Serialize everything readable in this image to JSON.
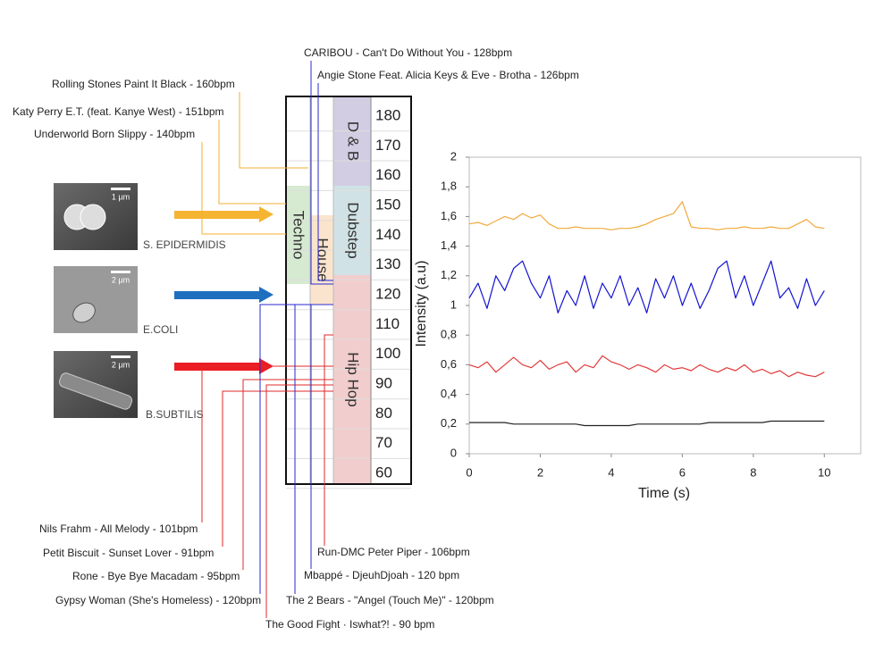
{
  "bpm_scale": [
    180,
    170,
    160,
    150,
    140,
    130,
    120,
    110,
    100,
    90,
    80,
    70,
    60
  ],
  "genres": [
    "D & B",
    "Dubstep",
    "Hip Hop",
    "Techno",
    "House"
  ],
  "bacteria": [
    {
      "name": "S. EPIDERMIDIS",
      "scale": "1 µm"
    },
    {
      "name": "E.COLI",
      "scale": "2 µm"
    },
    {
      "name": "B.SUBTILIS",
      "scale": "2 µm"
    }
  ],
  "songs": [
    "CARIBOU - Can't Do Without You  - 128bpm",
    "Angie Stone Feat. Alicia Keys & Eve - Brotha  - 126bpm",
    "Rolling Stones Paint It Black - 160bpm",
    "Katy Perry E.T. (feat. Kanye West) - 151bpm",
    "Underworld Born Slippy - 140bpm",
    "Nils Frahm - All Melody - 101bpm",
    "Petit Biscuit - Sunset Lover - 91bpm",
    "Rone - Bye Bye Macadam - 95bpm",
    "Gypsy Woman (She's Homeless) - 120bpm",
    "The Good Fight · Iswhat?! - 90 bpm",
    "The 2 Bears - \"Angel (Touch Me)\" - 120bpm",
    "Mbappé - DjeuhDjoah - 120 bpm",
    "Run-DMC Peter Piper - 106bpm"
  ],
  "chart_data": {
    "type": "line",
    "x_label": "Time (s)",
    "y_label": "Intensity (a.u)",
    "x": [
      0,
      0.25,
      0.5,
      0.75,
      1,
      1.25,
      1.5,
      1.75,
      2,
      2.25,
      2.5,
      2.75,
      3,
      3.25,
      3.5,
      3.75,
      4,
      4.25,
      4.5,
      4.75,
      5,
      5.25,
      5.5,
      5.75,
      6,
      6.25,
      6.5,
      6.75,
      7,
      7.25,
      7.5,
      7.75,
      8,
      8.25,
      8.5,
      8.75,
      9,
      9.25,
      9.5,
      9.75,
      10
    ],
    "series": [
      {
        "color": "#f2a93b",
        "values": [
          1.55,
          1.56,
          1.54,
          1.57,
          1.6,
          1.58,
          1.62,
          1.59,
          1.61,
          1.55,
          1.52,
          1.52,
          1.53,
          1.52,
          1.52,
          1.52,
          1.51,
          1.52,
          1.52,
          1.53,
          1.55,
          1.58,
          1.6,
          1.62,
          1.7,
          1.53,
          1.52,
          1.52,
          1.51,
          1.52,
          1.52,
          1.53,
          1.52,
          1.52,
          1.53,
          1.52,
          1.52,
          1.55,
          1.58,
          1.53,
          1.52
        ]
      },
      {
        "color": "#1414d2",
        "values": [
          1.05,
          1.15,
          0.98,
          1.2,
          1.1,
          1.25,
          1.3,
          1.15,
          1.05,
          1.2,
          0.95,
          1.1,
          1.0,
          1.2,
          0.98,
          1.15,
          1.05,
          1.2,
          1.0,
          1.12,
          0.95,
          1.18,
          1.05,
          1.2,
          1.0,
          1.15,
          0.98,
          1.1,
          1.25,
          1.3,
          1.05,
          1.2,
          1.0,
          1.15,
          1.3,
          1.05,
          1.12,
          0.98,
          1.18,
          1.0,
          1.1
        ]
      },
      {
        "color": "#e23a3a",
        "values": [
          0.6,
          0.58,
          0.62,
          0.55,
          0.6,
          0.65,
          0.6,
          0.58,
          0.63,
          0.57,
          0.6,
          0.62,
          0.55,
          0.6,
          0.58,
          0.66,
          0.62,
          0.6,
          0.57,
          0.6,
          0.58,
          0.55,
          0.6,
          0.57,
          0.58,
          0.56,
          0.6,
          0.57,
          0.55,
          0.58,
          0.56,
          0.6,
          0.55,
          0.57,
          0.54,
          0.56,
          0.52,
          0.55,
          0.53,
          0.52,
          0.55
        ]
      },
      {
        "color": "#222222",
        "values": [
          0.21,
          0.21,
          0.21,
          0.21,
          0.21,
          0.2,
          0.2,
          0.2,
          0.2,
          0.2,
          0.2,
          0.2,
          0.2,
          0.19,
          0.19,
          0.19,
          0.19,
          0.19,
          0.19,
          0.2,
          0.2,
          0.2,
          0.2,
          0.2,
          0.2,
          0.2,
          0.2,
          0.21,
          0.21,
          0.21,
          0.21,
          0.21,
          0.21,
          0.21,
          0.22,
          0.22,
          0.22,
          0.22,
          0.22,
          0.22,
          0.22
        ]
      }
    ],
    "xlim": [
      0,
      11
    ],
    "ylim": [
      0,
      2
    ],
    "xticks": [
      0,
      2,
      4,
      6,
      8,
      10
    ],
    "yticks": [
      0,
      {
        "value": 0.2,
        "label": "0,2"
      },
      {
        "value": 0.4,
        "label": "0,4"
      },
      {
        "value": 0.6,
        "label": "0,6"
      },
      {
        "value": 0.8,
        "label": "0,8"
      },
      1,
      {
        "value": 1.2,
        "label": "1,2"
      },
      {
        "value": 1.4,
        "label": "1,4"
      },
      {
        "value": 1.6,
        "label": "1,6"
      },
      {
        "value": 1.8,
        "label": "1,8"
      },
      2
    ]
  }
}
